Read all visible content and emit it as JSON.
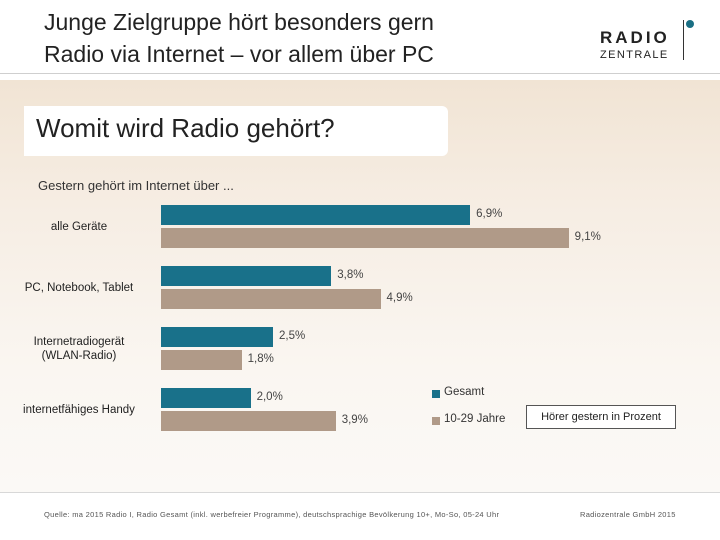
{
  "header": {
    "title_line1": "Junge Zielgruppe hört besonders gern",
    "title_line2": "Radio via Internet – vor allem über PC",
    "logo_top": "RADIO",
    "logo_bottom": "ZENTRALE"
  },
  "section": {
    "title": "Womit wird Radio gehört?",
    "subtitle": "Gestern gehört im Internet über ..."
  },
  "chart_data": {
    "type": "bar",
    "orientation": "horizontal",
    "title": "Womit wird Radio gehört?",
    "subtitle": "Gestern gehört im Internet über ...",
    "unit": "%",
    "categories": [
      [
        "alle Geräte"
      ],
      [
        "PC, Notebook, Tablet"
      ],
      [
        "Internetradiogerät",
        "(WLAN-Radio)"
      ],
      [
        "internetfähiges Handy"
      ]
    ],
    "series": [
      {
        "name": "Gesamt",
        "color": "#19718a",
        "values": [
          6.9,
          3.8,
          2.5,
          2.0
        ],
        "labels": [
          "6,9%",
          "3,8%",
          "2,5%",
          "2,0%"
        ]
      },
      {
        "name": "10-29 Jahre",
        "color": "#b09a88",
        "values": [
          9.1,
          4.9,
          1.8,
          3.9
        ],
        "labels": [
          "9,1%",
          "4,9%",
          "1,8%",
          "3,9%"
        ]
      }
    ],
    "xlim": [
      0,
      10
    ],
    "grid": false,
    "legend": "bottom-right",
    "note": "Hörer gestern in Prozent"
  },
  "footer": {
    "source": "Quelle: ma 2015 Radio I, Radio Gesamt (inkl. werbefreier Programme), deutschsprachige Bevölkerung 10+, Mo-So, 05-24 Uhr",
    "company": "Radiozentrale GmbH 2015"
  }
}
